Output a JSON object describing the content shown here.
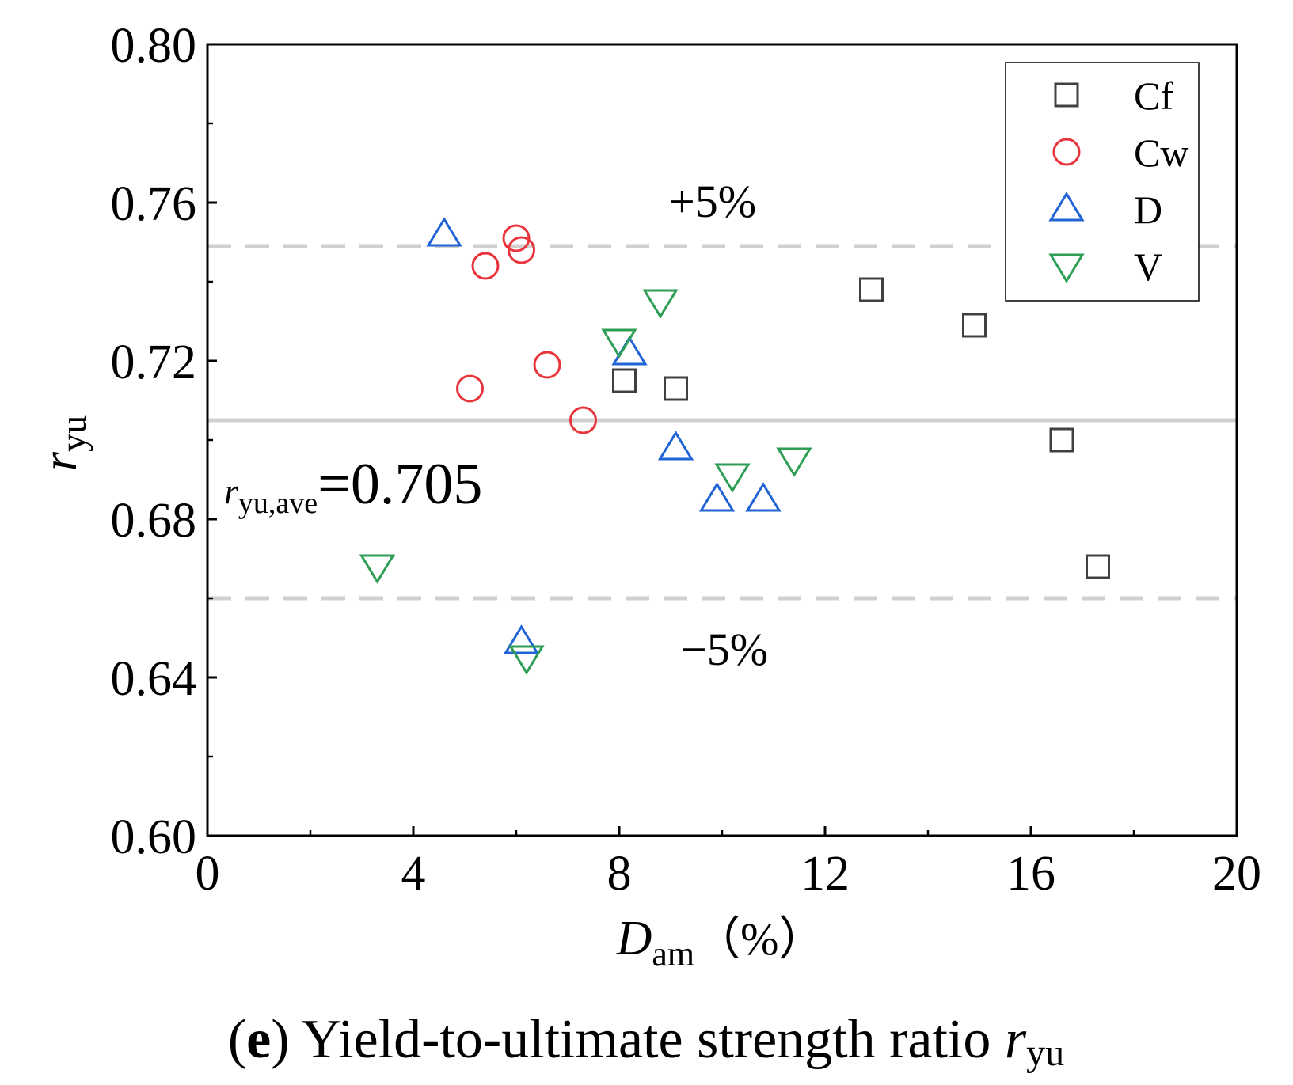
{
  "chart_data": {
    "type": "scatter",
    "title": "",
    "caption": {
      "letter": "e",
      "text": "Yield-to-ultimate strength ratio",
      "symbol": "r",
      "symbol_sub": "yu"
    },
    "xlabel": {
      "symbol": "D",
      "sub": "am",
      "unit": "（%）"
    },
    "ylabel": {
      "symbol": "r",
      "sub": "yu"
    },
    "xlim": [
      0,
      20
    ],
    "ylim": [
      0.6,
      0.8
    ],
    "xticks": [
      0,
      4,
      8,
      12,
      16,
      20
    ],
    "xtick_labels": [
      "0",
      "4",
      "8",
      "12",
      "16",
      "20"
    ],
    "yticks": [
      0.6,
      0.64,
      0.68,
      0.72,
      0.76,
      0.8
    ],
    "ytick_labels": [
      "0.60",
      "0.64",
      "0.68",
      "0.72",
      "0.76",
      "0.80"
    ],
    "grid": false,
    "legend_position": "top-right",
    "series": [
      {
        "name": "Cf",
        "marker": "square",
        "color": "#404040",
        "points": [
          [
            8.1,
            0.715
          ],
          [
            9.1,
            0.713
          ],
          [
            12.9,
            0.738
          ],
          [
            14.9,
            0.729
          ],
          [
            16.6,
            0.7
          ],
          [
            17.3,
            0.668
          ]
        ]
      },
      {
        "name": "Cw",
        "marker": "circle",
        "color": "#e8343a",
        "points": [
          [
            5.1,
            0.713
          ],
          [
            5.4,
            0.744
          ],
          [
            6.0,
            0.751
          ],
          [
            6.1,
            0.748
          ],
          [
            6.6,
            0.719
          ],
          [
            7.3,
            0.705
          ]
        ]
      },
      {
        "name": "D",
        "marker": "triangle-up",
        "color": "#1f63d6",
        "points": [
          [
            4.6,
            0.752
          ],
          [
            6.1,
            0.649
          ],
          [
            8.2,
            0.722
          ],
          [
            9.1,
            0.698
          ],
          [
            9.9,
            0.685
          ],
          [
            10.8,
            0.685
          ]
        ]
      },
      {
        "name": "V",
        "marker": "triangle-down",
        "color": "#2e9e55",
        "points": [
          [
            3.3,
            0.668
          ],
          [
            6.2,
            0.645
          ],
          [
            8.0,
            0.725
          ],
          [
            8.8,
            0.735
          ],
          [
            10.2,
            0.691
          ],
          [
            11.4,
            0.695
          ]
        ]
      }
    ],
    "reference_lines": [
      {
        "name": "average",
        "value": 0.705,
        "style": "solid",
        "color": "#d0d0d0"
      },
      {
        "name": "plus-5-percent",
        "value": 0.749,
        "style": "dashed",
        "color": "#d0d0d0"
      },
      {
        "name": "minus-5-percent",
        "value": 0.66,
        "style": "dashed",
        "color": "#d0d0d0"
      }
    ],
    "annotations": {
      "plus_band": "+5%",
      "minus_band": "−5%",
      "average": {
        "symbol": "r",
        "sub": "yu,ave",
        "value_text": "=0.705"
      }
    }
  }
}
